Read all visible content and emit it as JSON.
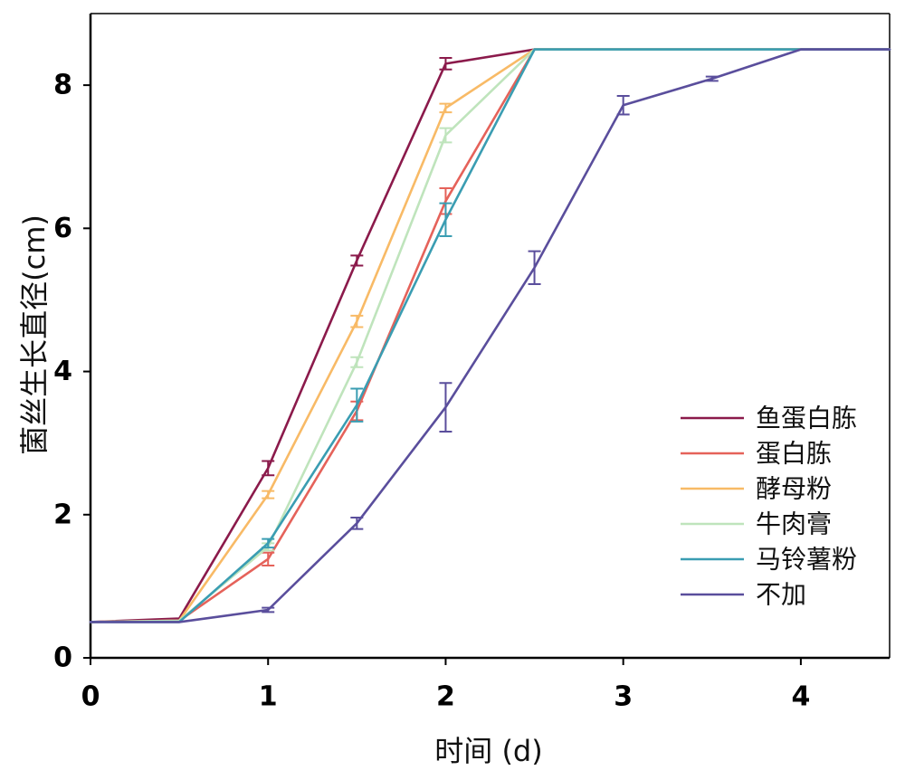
{
  "chart_data": {
    "type": "line",
    "xlabel": "时间 (d)",
    "ylabel": "菌丝生长直径(cm)",
    "xlim": [
      0,
      4.5
    ],
    "ylim": [
      0,
      9
    ],
    "xticks": [
      0,
      1,
      2,
      3,
      4
    ],
    "yticks": [
      0,
      2,
      4,
      6,
      8
    ],
    "grid": false,
    "legend": "lower-right",
    "x": [
      0,
      0.5,
      1,
      1.5,
      2,
      2.5,
      3,
      3.5,
      4,
      4.5
    ],
    "series": [
      {
        "name": "鱼蛋白胨",
        "color": "#8B1A4B",
        "y": [
          0.5,
          0.55,
          2.65,
          5.55,
          8.3,
          8.5,
          8.5,
          8.5,
          8.5,
          8.5
        ],
        "error": [
          0,
          0,
          0.1,
          0.07,
          0.08,
          0,
          0,
          0,
          0,
          0
        ]
      },
      {
        "name": "蛋白胨",
        "color": "#E5625A",
        "y": [
          0.5,
          0.52,
          1.38,
          3.45,
          6.38,
          8.5,
          8.5,
          8.5,
          8.5,
          8.5
        ],
        "error": [
          0,
          0,
          0.09,
          0.13,
          0.18,
          0,
          0,
          0,
          0,
          0
        ]
      },
      {
        "name": "酵母粉",
        "color": "#F8BA66",
        "y": [
          0.5,
          0.52,
          2.28,
          4.7,
          7.68,
          8.5,
          8.5,
          8.5,
          8.5,
          8.5
        ],
        "error": [
          0,
          0,
          0.05,
          0.08,
          0.06,
          0,
          0,
          0,
          0,
          0
        ]
      },
      {
        "name": "牛肉膏",
        "color": "#BFE4BC",
        "y": [
          0.5,
          0.52,
          1.55,
          4.13,
          7.3,
          8.5,
          8.5,
          8.5,
          8.5,
          8.5
        ],
        "error": [
          0,
          0,
          0.05,
          0.07,
          0.1,
          0,
          0,
          0,
          0,
          0
        ]
      },
      {
        "name": "马铃薯粉",
        "color": "#3A9DB2",
        "y": [
          0.5,
          0.5,
          1.6,
          3.53,
          6.12,
          8.5,
          8.5,
          8.5,
          8.5,
          8.5
        ],
        "error": [
          0,
          0,
          0.06,
          0.23,
          0.23,
          0,
          0,
          0,
          0,
          0
        ]
      },
      {
        "name": "不加",
        "color": "#5A4E9C",
        "y": [
          0.5,
          0.5,
          0.67,
          1.88,
          3.5,
          5.45,
          7.72,
          8.09,
          8.5,
          8.5
        ],
        "error": [
          0,
          0,
          0.03,
          0.08,
          0.34,
          0.23,
          0.13,
          0.03,
          0,
          0
        ]
      }
    ]
  }
}
